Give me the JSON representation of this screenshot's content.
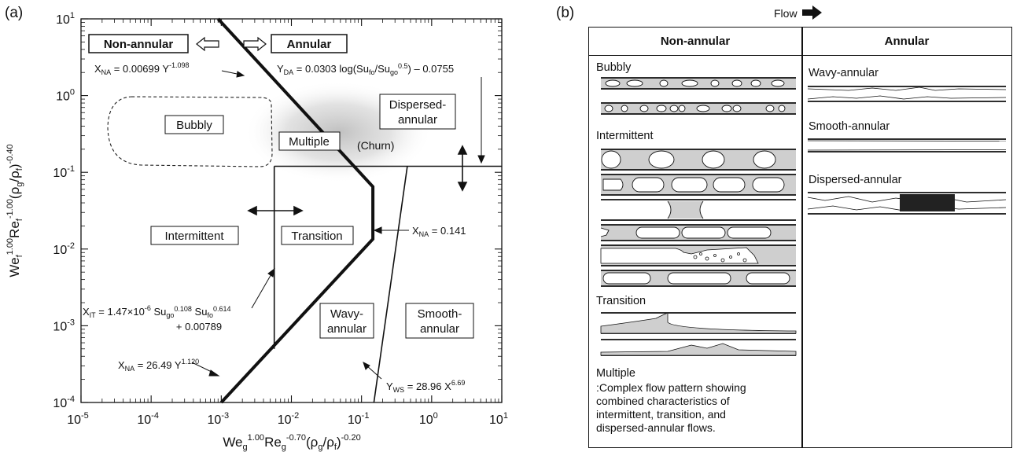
{
  "panel_a": {
    "letter": "(a)",
    "xlabel_parts": {
      "a": "We",
      "a_sub": "g",
      "a_sup": "1.00",
      "b": "Re",
      "b_sub": "g",
      "b_sup": "-0.70",
      "c": "(ρ",
      "c_sub": "g",
      "d": "/ρ",
      "d_sub": "f",
      "e": ")",
      "e_sup": "-0.20"
    },
    "ylabel_parts": {
      "a": "We",
      "a_sub": "f",
      "a_sup": "1.00",
      "b": "Re",
      "b_sub": "f",
      "b_sup": "-1.00",
      "c": "(ρ",
      "c_sub": "g",
      "d": "/ρ",
      "d_sub": "f",
      "e": ")",
      "e_sup": "-0.40"
    },
    "x_ticks": [
      {
        "base": "10",
        "exp": "-5",
        "value": 1e-05
      },
      {
        "base": "10",
        "exp": "-4",
        "value": 0.0001
      },
      {
        "base": "10",
        "exp": "-3",
        "value": 0.001
      },
      {
        "base": "10",
        "exp": "-2",
        "value": 0.01
      },
      {
        "base": "10",
        "exp": "-1",
        "value": 0.1
      },
      {
        "base": "10",
        "exp": "0",
        "value": 1
      },
      {
        "base": "10",
        "exp": "1",
        "value": 10
      }
    ],
    "y_ticks": [
      {
        "base": "10",
        "exp": "-4",
        "value": 0.0001
      },
      {
        "base": "10",
        "exp": "-3",
        "value": 0.001
      },
      {
        "base": "10",
        "exp": "-2",
        "value": 0.01
      },
      {
        "base": "10",
        "exp": "-1",
        "value": 0.1
      },
      {
        "base": "10",
        "exp": "0",
        "value": 1
      },
      {
        "base": "10",
        "exp": "1",
        "value": 10
      }
    ],
    "x_range": [
      1e-05,
      10
    ],
    "y_range": [
      0.0001,
      10
    ],
    "scale": "log-log",
    "boundary_lines": [
      {
        "id": "nonannular-annular",
        "style": "thick",
        "points": [
          [
            0.0009,
            10
          ],
          [
            0.145,
            0.065
          ],
          [
            0.145,
            0.0135
          ],
          [
            0.001,
            0.0001
          ]
        ]
      },
      {
        "id": "intermittent-transition",
        "style": "thin",
        "points": [
          [
            0.0057,
            0.12
          ],
          [
            0.0057,
            0.0005
          ]
        ]
      },
      {
        "id": "dispersed-annular",
        "style": "thin",
        "points": [
          [
            0.0057,
            0.12
          ],
          [
            10,
            0.12
          ]
        ]
      },
      {
        "id": "wavy-smooth",
        "style": "thin",
        "points": [
          [
            0.45,
            0.12
          ],
          [
            0.15,
            0.0001
          ]
        ]
      }
    ],
    "region_labels": {
      "non_annular": "Non-annular",
      "annular": "Annular",
      "bubbly": "Bubbly",
      "dispersed_1": "Dispersed-",
      "dispersed_2": "annular",
      "multiple": "Multiple",
      "churn": "(Churn)",
      "intermittent": "Intermittent",
      "transition": "Transition",
      "wavy_1": "Wavy-",
      "wavy_2": "annular",
      "smooth_1": "Smooth-",
      "smooth_2": "annular"
    },
    "equations": {
      "xna_top": {
        "a": "X",
        "a_sub": "NA",
        "b": " = 0.00699 Y",
        "b_sup": "-1.098"
      },
      "yda": {
        "a": "Y",
        "a_sub": "DA",
        "b": " = 0.0303 log(Su",
        "b_sub": "fo",
        "c": "/Su",
        "c_sub": "go",
        "c_sup": "0.5",
        "d": ") – 0.0755"
      },
      "xna_mid": {
        "a": "X",
        "a_sub": "NA",
        "b": " = 0.141"
      },
      "xit": {
        "a": "X",
        "a_sub": "IT",
        "b": " = 1.47×10",
        "b_sup": "-6",
        "c": " Su",
        "c_sub": "go",
        "c_sup": "0.108",
        "d": " Su",
        "d_sub": "fo",
        "d_sup": "0.614",
        "line2": "+ 0.00789"
      },
      "xna_bot": {
        "a": "X",
        "a_sub": "NA",
        "b": " = 26.49 Y",
        "b_sup": "1.120"
      },
      "yws": {
        "a": "Y",
        "a_sub": "WS",
        "b": " = 28.96 X",
        "b_sup": "6.69"
      }
    }
  },
  "panel_b": {
    "letter": "(b)",
    "flow_label": "Flow",
    "col_non_annular": "Non-annular",
    "col_annular": "Annular",
    "bubbly": "Bubbly",
    "intermittent": "Intermittent",
    "transition": "Transition",
    "multiple_title": "Multiple",
    "multiple_desc": ":Complex flow pattern showing\ncombined characteristics of\nintermittent, transition, and\ndispersed-annular flows.",
    "wavy_annular": "Wavy-annular",
    "smooth_annular": "Smooth-annular",
    "dispersed_annular": "Dispersed-annular"
  }
}
